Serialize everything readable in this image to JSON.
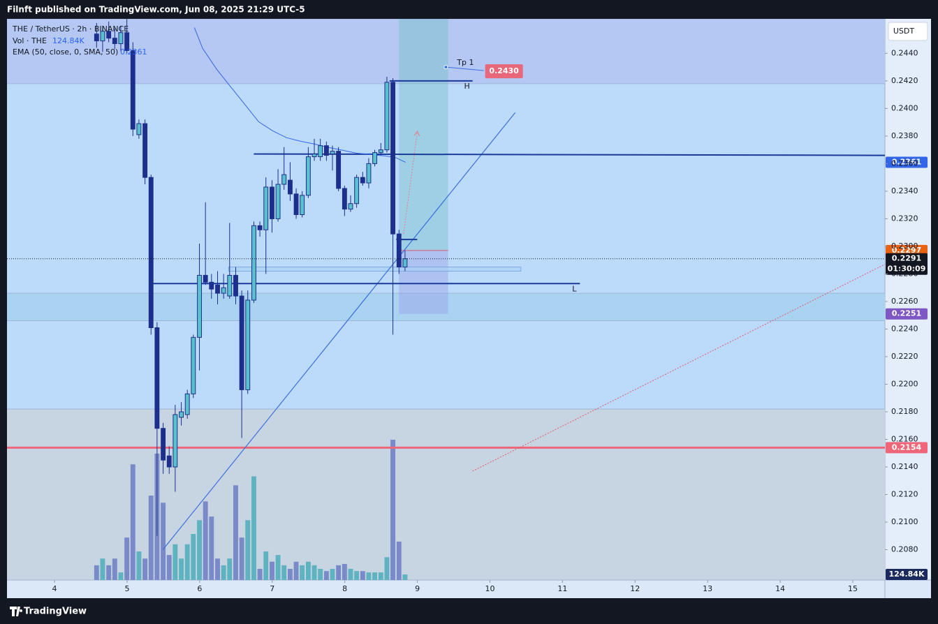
{
  "chart_data": {
    "type": "candlestick",
    "header": "Filnft published on TradingView.com, Jun 08, 2025 21:29 UTC-5",
    "footer": "TradingView",
    "symbol": "THE / TetherUS · 2h · BINANCE",
    "currency": "USDT",
    "countdown": "01:30:09",
    "xlim": [
      3.345,
      15.443
    ],
    "xticks": [
      4,
      5,
      6,
      7,
      8,
      9,
      10,
      11,
      12,
      13,
      14,
      15
    ],
    "ylim": [
      0.2058,
      0.2465
    ],
    "yticks": [
      {
        "value": 0.208,
        "label": "0.2080"
      },
      {
        "value": 0.21,
        "label": "0.2100"
      },
      {
        "value": 0.212,
        "label": "0.2120"
      },
      {
        "value": 0.214,
        "label": "0.2140"
      },
      {
        "value": 0.216,
        "label": "0.2160"
      },
      {
        "value": 0.218,
        "label": "0.2180"
      },
      {
        "value": 0.22,
        "label": "0.2200"
      },
      {
        "value": 0.222,
        "label": "0.2220"
      },
      {
        "value": 0.224,
        "label": "0.2240"
      },
      {
        "value": 0.226,
        "label": "0.2260"
      },
      {
        "value": 0.228,
        "label": "0.2280"
      },
      {
        "value": 0.23,
        "label": "0.2300"
      },
      {
        "value": 0.232,
        "label": "0.2320"
      },
      {
        "value": 0.234,
        "label": "0.2340"
      },
      {
        "value": 0.236,
        "label": "0.2360"
      },
      {
        "value": 0.238,
        "label": "0.2380"
      },
      {
        "value": 0.24,
        "label": "0.2400"
      },
      {
        "value": 0.242,
        "label": "0.2420"
      },
      {
        "value": 0.244,
        "label": "0.2440"
      }
    ],
    "grid": false,
    "up_color": "#59c1cd",
    "down_color": "#1d2f8c",
    "x": [
      4.58,
      4.663,
      4.747,
      4.83,
      4.913,
      4.997,
      5.08,
      5.163,
      5.247,
      5.33,
      5.413,
      5.497,
      5.58,
      5.663,
      5.747,
      5.83,
      5.913,
      5.997,
      6.08,
      6.163,
      6.247,
      6.33,
      6.413,
      6.497,
      6.58,
      6.663,
      6.747,
      6.83,
      6.913,
      6.997,
      7.08,
      7.163,
      7.247,
      7.33,
      7.413,
      7.497,
      7.58,
      7.663,
      7.747,
      7.83,
      7.913,
      7.997,
      8.08,
      8.163,
      8.247,
      8.33,
      8.413,
      8.497,
      8.58,
      8.663,
      8.747,
      8.83
    ],
    "open": [
      0.2454,
      0.2449,
      0.2456,
      0.2451,
      0.2447,
      0.2455,
      0.2442,
      0.2381,
      0.2389,
      0.235,
      0.2241,
      0.2168,
      0.2148,
      0.214,
      0.2176,
      0.2178,
      0.2193,
      0.2234,
      0.2279,
      0.2274,
      0.2272,
      0.2266,
      0.2264,
      0.2279,
      0.2264,
      0.2196,
      0.2261,
      0.2315,
      0.2312,
      0.2343,
      0.232,
      0.2345,
      0.2348,
      0.2338,
      0.2323,
      0.2337,
      0.2365,
      0.2365,
      0.2373,
      0.2367,
      0.2369,
      0.2342,
      0.2327,
      0.2331,
      0.235,
      0.2346,
      0.236,
      0.2368,
      0.237,
      0.2419,
      0.2309,
      0.2285
    ],
    "high": [
      0.2462,
      0.246,
      0.2463,
      0.2458,
      0.246,
      0.2465,
      0.2448,
      0.2392,
      0.2392,
      0.2352,
      0.2245,
      0.2172,
      0.2155,
      0.2185,
      0.2187,
      0.2196,
      0.2236,
      0.2302,
      0.2332,
      0.228,
      0.2282,
      0.228,
      0.2317,
      0.2285,
      0.2268,
      0.2268,
      0.2318,
      0.2318,
      0.235,
      0.2348,
      0.2356,
      0.2372,
      0.2361,
      0.2342,
      0.234,
      0.2372,
      0.2378,
      0.2378,
      0.2376,
      0.2373,
      0.2372,
      0.2344,
      0.2337,
      0.2352,
      0.2354,
      0.2364,
      0.237,
      0.2375,
      0.2423,
      0.2422,
      0.2312,
      0.2297
    ],
    "low": [
      0.2444,
      0.2441,
      0.2448,
      0.2443,
      0.2442,
      0.244,
      0.238,
      0.2378,
      0.2345,
      0.2236,
      0.209,
      0.2135,
      0.2135,
      0.2122,
      0.217,
      0.2175,
      0.219,
      0.221,
      0.2272,
      0.2262,
      0.2258,
      0.2262,
      0.2262,
      0.2258,
      0.2161,
      0.2193,
      0.2259,
      0.2307,
      0.228,
      0.231,
      0.2318,
      0.2341,
      0.2333,
      0.232,
      0.2321,
      0.2335,
      0.2362,
      0.2362,
      0.2362,
      0.2355,
      0.234,
      0.2322,
      0.2325,
      0.2328,
      0.2344,
      0.2342,
      0.2358,
      0.2366,
      0.2368,
      0.2236,
      0.228,
      0.2282
    ],
    "close": [
      0.2449,
      0.2456,
      0.2451,
      0.2447,
      0.2455,
      0.2442,
      0.2385,
      0.2389,
      0.235,
      0.2241,
      0.2168,
      0.2145,
      0.214,
      0.2178,
      0.218,
      0.2193,
      0.2234,
      0.2279,
      0.2274,
      0.2269,
      0.2266,
      0.227,
      0.2279,
      0.2264,
      0.2196,
      0.2261,
      0.2315,
      0.2312,
      0.2343,
      0.232,
      0.2345,
      0.2352,
      0.2338,
      0.2323,
      0.2337,
      0.2365,
      0.2367,
      0.2373,
      0.2366,
      0.2369,
      0.2342,
      0.2327,
      0.2331,
      0.235,
      0.2346,
      0.236,
      0.2368,
      0.237,
      0.2419,
      0.2309,
      0.2285,
      0.2291
    ],
    "volume": {
      "name": "Vol · THE",
      "label": "124.84K",
      "up_color": "#5fb3c0",
      "down_color": "#7a89c8",
      "values": [
        330,
        480,
        330,
        480,
        170,
        950,
        2590,
        640,
        480,
        1890,
        2830,
        1730,
        560,
        800,
        480,
        800,
        1030,
        1340,
        1760,
        1420,
        480,
        330,
        480,
        2120,
        950,
        1340,
        2320,
        250,
        640,
        410,
        560,
        330,
        250,
        410,
        330,
        410,
        330,
        250,
        200,
        250,
        330,
        360,
        250,
        200,
        200,
        170,
        170,
        170,
        510,
        3140,
        860,
        124.84
      ]
    },
    "ema": {
      "name": "EMA (50, close, 0, SMA, 50)",
      "value": 0.2361,
      "color": "#3366e6",
      "x": [
        5.927,
        6.042,
        6.235,
        6.428,
        6.62,
        6.813,
        7.006,
        7.198,
        7.391,
        7.584,
        7.776,
        7.969,
        8.162,
        8.355,
        8.547,
        8.692,
        8.836
      ],
      "values": [
        0.24587,
        0.24435,
        0.24284,
        0.24157,
        0.24031,
        0.23904,
        0.23838,
        0.23788,
        0.23762,
        0.23742,
        0.23717,
        0.23697,
        0.23676,
        0.23666,
        0.23656,
        0.23646,
        0.2361
      ]
    },
    "zones": [
      {
        "low": 0.2418,
        "high": 0.2465,
        "color": "#b4c8f3"
      },
      {
        "low": 0.2246,
        "high": 0.2266,
        "color": "#a9d3f1"
      },
      {
        "low": 0.2058,
        "high": 0.2182,
        "color": "#c6d5e1"
      }
    ],
    "position": {
      "t1": 8.747,
      "t2": 9.424,
      "entry": 0.2297,
      "stop": 0.2251,
      "target": 0.247,
      "entry_color": "#e8620f",
      "stop_color": "#7e57c2"
    },
    "box": {
      "t1": 6.399,
      "t2": 10.426,
      "low": 0.2282,
      "high": 0.2285
    },
    "levels": [
      {
        "value": 0.2154,
        "color": "#ee6677"
      }
    ],
    "lines": [
      {
        "t1": 5.493,
        "v1": 0.208,
        "t2": 10.348,
        "v2": 0.2397,
        "color": "#3a6fe0",
        "width": 1.2
      },
      {
        "t1": 6.746,
        "v1": 0.2367,
        "t2": 15.443,
        "v2": 0.2366,
        "color": "#1a3a9a",
        "width": 2
      },
      {
        "t1": 5.329,
        "v1": 0.2273,
        "t2": 11.24,
        "v2": 0.2273,
        "color": "#1a3a9a",
        "width": 2,
        "label": "L"
      },
      {
        "t1": 8.617,
        "v1": 0.242,
        "t2": 9.761,
        "v2": 0.242,
        "color": "#1a3a9a",
        "width": 2,
        "label": "H"
      },
      {
        "t1": 8.709,
        "v1": 0.2305,
        "t2": 8.998,
        "v2": 0.2305,
        "color": "#1a3a9a",
        "width": 2
      },
      {
        "t1": 9.761,
        "v1": 0.2137,
        "t2": 15.443,
        "v2": 0.2287,
        "color": "#e05a6a",
        "width": 1,
        "dash": true
      },
      {
        "t1": 8.81,
        "v1": 0.2309,
        "t2": 9.0,
        "v2": 0.2383,
        "color": "#e87a8a",
        "width": 1,
        "dash": true,
        "arrow": true
      }
    ],
    "tp": {
      "text": "Tp 1",
      "t": 9.393,
      "t2": 9.915,
      "value": 0.243,
      "label": "0.2430",
      "color": "#e0566a"
    }
  }
}
